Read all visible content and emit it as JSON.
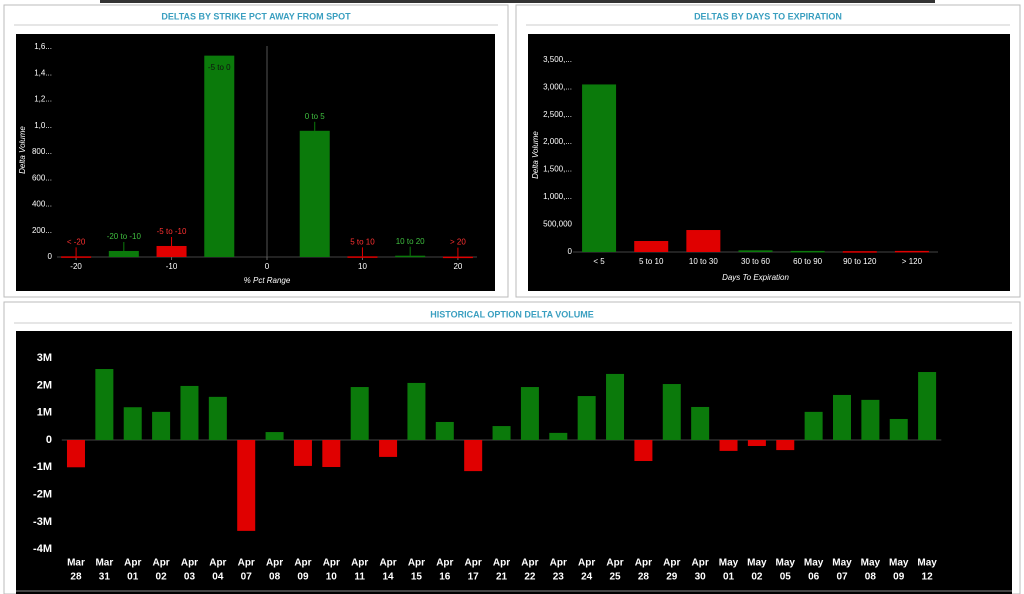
{
  "chart_data": [
    {
      "type": "bar",
      "title": "DELTAS BY STRIKE PCT AWAY FROM SPOT",
      "x_label": "% Pct Range",
      "y_label": "Delta Volume",
      "x": [
        -20,
        -15,
        -10,
        -5,
        5,
        10,
        15,
        20
      ],
      "bar_labels": [
        "< -20",
        "-20 to -10",
        "-5 to -10",
        "-5 to 0",
        "0 to 5",
        "5 to 10",
        "10 to 20",
        "> 20"
      ],
      "values": [
        5000,
        46000,
        84000,
        1535000,
        962000,
        5000,
        10000,
        3000
      ],
      "colors": [
        "#e00000",
        "#0b7a0b",
        "#e00000",
        "#0b7a0b",
        "#0b7a0b",
        "#e00000",
        "#0b7a0b",
        "#e00000"
      ],
      "xlim": [
        -22,
        22
      ],
      "xticks": [
        -20,
        -10,
        0,
        10,
        20
      ],
      "ylim": [
        0,
        1700000
      ],
      "yticks": [
        0,
        {
          "value": 200000,
          "label": "200..."
        },
        {
          "value": 400000,
          "label": "400..."
        },
        {
          "value": 600000,
          "label": "600..."
        },
        {
          "value": 800000,
          "label": "800..."
        },
        {
          "value": 1000000,
          "label": "1,0..."
        },
        {
          "value": 1200000,
          "label": "1,2..."
        },
        {
          "value": 1400000,
          "label": "1,4..."
        },
        {
          "value": 1600000,
          "label": "1,6..."
        }
      ]
    },
    {
      "type": "bar",
      "title": "DELTAS BY DAYS TO EXPIRATION",
      "x_label": "Days To Expiration",
      "y_label": "Delta Volume",
      "categories": [
        "< 5",
        "5 to 10",
        "10 to 30",
        "30 to 60",
        "60 to 90",
        "90 to 120",
        "> 120"
      ],
      "values": [
        3050000,
        200000,
        400000,
        30000,
        20000,
        15000,
        20000
      ],
      "colors": [
        "#0b7a0b",
        "#e00000",
        "#e00000",
        "#0b7a0b",
        "#0b7a0b",
        "#e00000",
        "#e00000"
      ],
      "ylim": [
        0,
        3950000
      ],
      "yticks": [
        0,
        {
          "value": 500000,
          "label": "500,000"
        },
        {
          "value": 1000000,
          "label": "1,000,..."
        },
        {
          "value": 1500000,
          "label": "1,500,..."
        },
        {
          "value": 2000000,
          "label": "2,000,..."
        },
        {
          "value": 2500000,
          "label": "2,500,..."
        },
        {
          "value": 3000000,
          "label": "3,000,..."
        },
        {
          "value": 3500000,
          "label": "3,500,..."
        }
      ]
    },
    {
      "type": "bar",
      "title": "HISTORICAL OPTION DELTA VOLUME",
      "categories": [
        [
          "Mar",
          "28"
        ],
        [
          "Mar",
          "31"
        ],
        [
          "Apr",
          "01"
        ],
        [
          "Apr",
          "02"
        ],
        [
          "Apr",
          "03"
        ],
        [
          "Apr",
          "04"
        ],
        [
          "Apr",
          "07"
        ],
        [
          "Apr",
          "08"
        ],
        [
          "Apr",
          "09"
        ],
        [
          "Apr",
          "10"
        ],
        [
          "Apr",
          "11"
        ],
        [
          "Apr",
          "14"
        ],
        [
          "Apr",
          "15"
        ],
        [
          "Apr",
          "16"
        ],
        [
          "Apr",
          "17"
        ],
        [
          "Apr",
          "21"
        ],
        [
          "Apr",
          "22"
        ],
        [
          "Apr",
          "23"
        ],
        [
          "Apr",
          "24"
        ],
        [
          "Apr",
          "25"
        ],
        [
          "Apr",
          "28"
        ],
        [
          "Apr",
          "29"
        ],
        [
          "Apr",
          "30"
        ],
        [
          "May",
          "01"
        ],
        [
          "May",
          "02"
        ],
        [
          "May",
          "05"
        ],
        [
          "May",
          "06"
        ],
        [
          "May",
          "07"
        ],
        [
          "May",
          "08"
        ],
        [
          "May",
          "09"
        ],
        [
          "May",
          "12"
        ]
      ],
      "values": [
        -1000000,
        2600000,
        1200000,
        1030000,
        1980000,
        1580000,
        -3330000,
        290000,
        -950000,
        -990000,
        1940000,
        -620000,
        2090000,
        660000,
        -1140000,
        510000,
        1940000,
        260000,
        1610000,
        2420000,
        -770000,
        2050000,
        1210000,
        -400000,
        -220000,
        -370000,
        1030000,
        1650000,
        1470000,
        770000,
        2490000
      ],
      "positive_color": "#0b7a0b",
      "negative_color": "#e00000",
      "ylim": [
        -4100000,
        3850000
      ],
      "yticks": [
        {
          "value": -4000000,
          "label": "-4M"
        },
        {
          "value": -3000000,
          "label": "-3M"
        },
        {
          "value": -2000000,
          "label": "-2M"
        },
        {
          "value": -1000000,
          "label": "-1M"
        },
        0,
        {
          "value": 1000000,
          "label": "1M"
        },
        {
          "value": 2000000,
          "label": "2M"
        },
        {
          "value": 3000000,
          "label": "3M"
        }
      ]
    }
  ]
}
